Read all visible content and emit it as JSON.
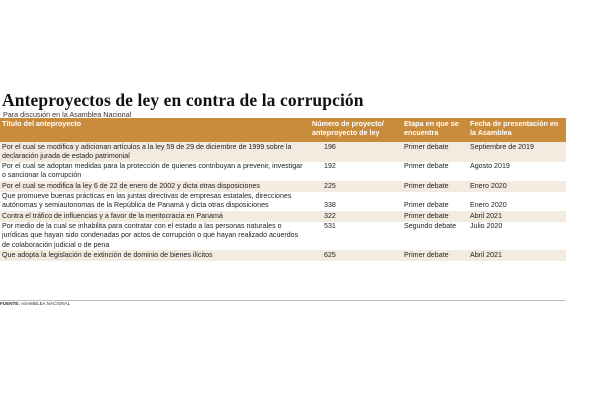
{
  "title": "Anteproyectos de ley en contra de la corrupción",
  "subtitle": "Para discusión en la Asamblea Nacional",
  "columns": {
    "c1": "Título del anteproyecto",
    "c2": "Número de proyecto/ anteproyecto de ley",
    "c3": "Etapa en que se encuentra",
    "c4": "Fecha de presentación en la Asamblea"
  },
  "rows": [
    {
      "titulo": "Por el cual se modifica y adicionan artículos a la ley 59 de 29 de diciembre de 1999 sobre la declaración jurada de estado patrimonial",
      "numero": "196",
      "etapa": "Primer debate",
      "fecha": "Septiembre de 2019"
    },
    {
      "titulo": "Por el cual se adoptan medidas para la protección de quienes contribuyan a prevenir, investigar o sancionar la corrupción",
      "numero": "192",
      "etapa": "Primer debate",
      "fecha": "Agosto 2019"
    },
    {
      "titulo": "Por el cual se modifica la ley 6 de 22 de enero de 2002 y dicta otras disposiciones",
      "numero": "225",
      "etapa": "Primer debate",
      "fecha": "Enero 2020"
    },
    {
      "titulo": "Que promueve buenas prácticas en las juntas directivas de empresas estatales, direcciones autónomas y semiautonomas de la República de Panamá y dicta otras disposiciones",
      "numero": "338",
      "etapa": "Primer debate",
      "fecha": "Enero 2020"
    },
    {
      "titulo": "Contra el tráfico de influencias y a favor de la meritocracia en Panamá",
      "numero": "322",
      "etapa": "Primer debate",
      "fecha": "Abril 2021"
    },
    {
      "titulo": "Por medio de la cual se inhabilita para contratar con el estado a las personas naturales o jurídicas que hayan sido condenadas por actos de corrupción o que hayan realizado acuerdos de colaboración judicial o de pena",
      "numero": "531",
      "etapa": "Segundo debate",
      "fecha": "Julio 2020"
    },
    {
      "titulo": "Que adopta la legislación de extinción de dominio de bienes ilícitos",
      "numero": "625",
      "etapa": "Primer debate",
      "fecha": "Abril 2021"
    }
  ],
  "source_label": "FUENTE:",
  "source_text": "ASAMBLEA NACIONAL",
  "colors": {
    "header_bg": "#c98b3c",
    "row_shade": "#f3ebe0"
  }
}
